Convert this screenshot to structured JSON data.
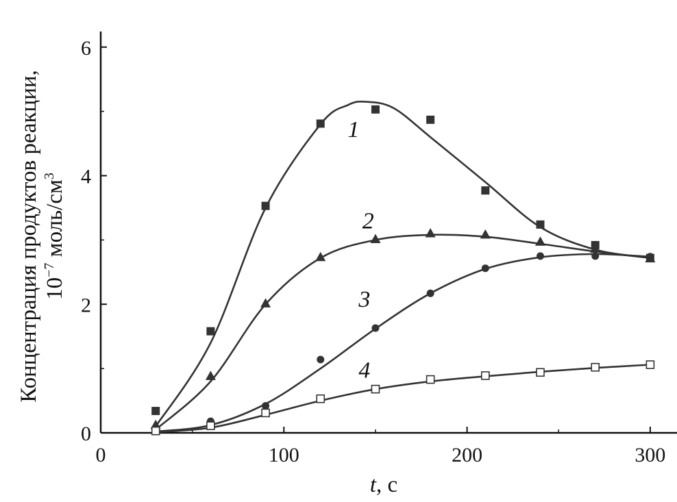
{
  "chart_data": {
    "type": "line",
    "xlabel": {
      "var": "t",
      "unit": ", с"
    },
    "ylabel": {
      "line1": "Концентрация продуктов реакции,",
      "line2_base": "10",
      "line2_exp": "−7",
      "line2_unit": " моль/см",
      "line2_unit_exp": "3"
    },
    "xlim": [
      0,
      315
    ],
    "ylim": [
      0,
      6.2
    ],
    "xticks": [
      0,
      100,
      200,
      300
    ],
    "xtick_labels": [
      "0",
      "100",
      "200",
      "300"
    ],
    "yticks": [
      0,
      2,
      4,
      6
    ],
    "ytick_labels": [
      "0",
      "2",
      "4",
      "6"
    ],
    "grid": false,
    "x": [
      30,
      60,
      90,
      120,
      150,
      180,
      210,
      240,
      270,
      300
    ],
    "series": [
      {
        "name": "1",
        "marker": "filled-square",
        "values": [
          0.34,
          1.58,
          3.53,
          4.81,
          5.03,
          4.87,
          3.77,
          3.24,
          2.92,
          2.72
        ],
        "curve": [
          [
            30,
            0.1
          ],
          [
            60,
            1.4
          ],
          [
            90,
            3.5
          ],
          [
            120,
            4.8
          ],
          [
            135,
            5.1
          ],
          [
            145,
            5.15
          ],
          [
            160,
            5.05
          ],
          [
            180,
            4.6
          ],
          [
            210,
            3.9
          ],
          [
            240,
            3.2
          ],
          [
            270,
            2.85
          ],
          [
            300,
            2.72
          ]
        ],
        "label": "1",
        "label_pos": [
          138,
          4.6
        ]
      },
      {
        "name": "2",
        "marker": "filled-triangle",
        "values": [
          0.12,
          0.88,
          2.01,
          2.73,
          3.01,
          3.1,
          3.08,
          2.97,
          2.86,
          2.71
        ],
        "curve": [
          [
            30,
            0.05
          ],
          [
            60,
            0.8
          ],
          [
            90,
            2.0
          ],
          [
            120,
            2.72
          ],
          [
            150,
            3.0
          ],
          [
            180,
            3.08
          ],
          [
            210,
            3.05
          ],
          [
            240,
            2.94
          ],
          [
            270,
            2.82
          ],
          [
            300,
            2.72
          ]
        ],
        "label": "2",
        "label_pos": [
          146,
          3.18
        ]
      },
      {
        "name": "3",
        "marker": "filled-circle",
        "values": [
          0.07,
          0.18,
          0.42,
          1.14,
          1.63,
          2.17,
          2.56,
          2.75,
          2.75,
          2.74
        ],
        "curve": [
          [
            30,
            0.02
          ],
          [
            60,
            0.12
          ],
          [
            90,
            0.45
          ],
          [
            120,
            1.0
          ],
          [
            150,
            1.62
          ],
          [
            180,
            2.17
          ],
          [
            210,
            2.55
          ],
          [
            240,
            2.73
          ],
          [
            270,
            2.78
          ],
          [
            300,
            2.74
          ]
        ],
        "label": "3",
        "label_pos": [
          144,
          1.96
        ]
      },
      {
        "name": "4",
        "marker": "open-square",
        "values": [
          0.03,
          0.11,
          0.31,
          0.53,
          0.68,
          0.83,
          0.89,
          0.94,
          1.02,
          1.06
        ],
        "curve": [
          [
            30,
            0.01
          ],
          [
            60,
            0.08
          ],
          [
            90,
            0.28
          ],
          [
            120,
            0.5
          ],
          [
            150,
            0.68
          ],
          [
            180,
            0.8
          ],
          [
            210,
            0.88
          ],
          [
            240,
            0.95
          ],
          [
            270,
            1.01
          ],
          [
            300,
            1.06
          ]
        ],
        "label": "4",
        "label_pos": [
          144,
          0.86
        ]
      }
    ]
  }
}
